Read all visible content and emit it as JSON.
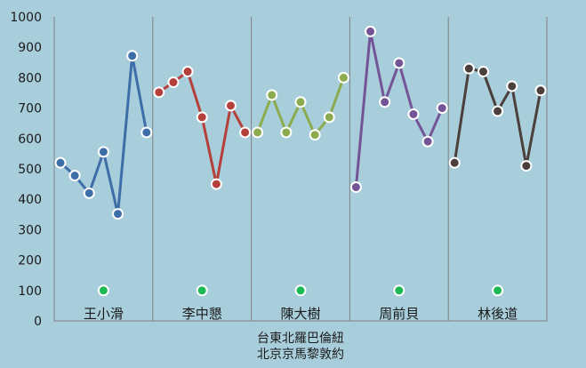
{
  "chart_data": {
    "type": "line",
    "ylim": [
      0,
      1000
    ],
    "yticks": [
      0,
      100,
      200,
      300,
      400,
      500,
      600,
      700,
      800,
      900,
      1000
    ],
    "grid": false,
    "legend": "none",
    "xlabel_lines": [
      "台東北羅巴倫紐",
      "北京京馬黎敦約"
    ],
    "marker_value": 100,
    "colors": {
      "background": "#a9cedb",
      "axis": "#808080",
      "marker": "#1db954",
      "point_outline": "#ffffff"
    },
    "groups": [
      {
        "name": "王小滑",
        "color": "#3d6ea8",
        "values": [
          520,
          478,
          420,
          556,
          352,
          872,
          620
        ]
      },
      {
        "name": "李中懇",
        "color": "#b5403b",
        "values": [
          752,
          785,
          820,
          670,
          450,
          708,
          620
        ]
      },
      {
        "name": "陳大樹",
        "color": "#8cab4e",
        "values": [
          620,
          743,
          620,
          720,
          612,
          670,
          800
        ]
      },
      {
        "name": "周前貝",
        "color": "#735597",
        "values": [
          440,
          952,
          720,
          848,
          680,
          590,
          700
        ]
      },
      {
        "name": "林後道",
        "color": "#4a3f3c",
        "values": [
          520,
          830,
          820,
          690,
          772,
          510,
          758
        ]
      }
    ]
  }
}
